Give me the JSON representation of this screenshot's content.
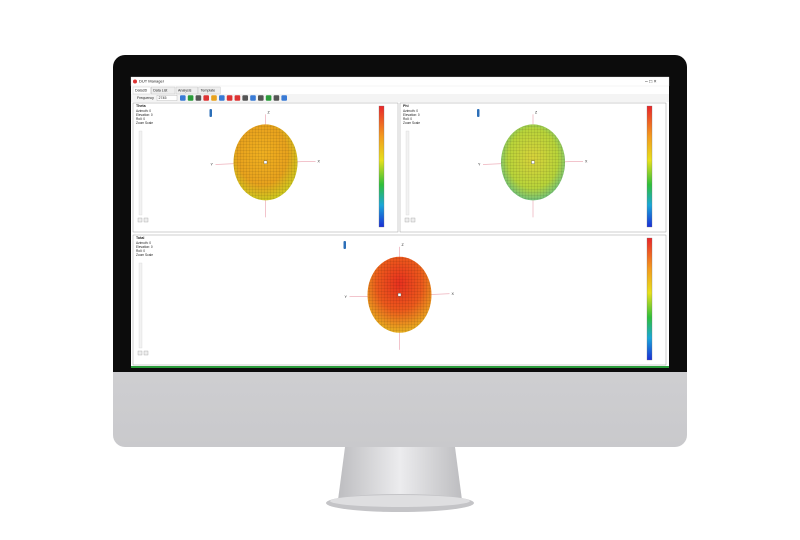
{
  "window": {
    "title": "DUT Manager"
  },
  "tabs": [
    "Data3D",
    "Data List",
    "Analysis",
    "Template"
  ],
  "toolbar": {
    "frequency_label": "Frequency",
    "frequency_value": "2745"
  },
  "panels": [
    {
      "title": "Theta",
      "azimuth": "Azimuth: 0",
      "elevation": "Elevation: 0",
      "roll": "Roll: 0",
      "zoom": "Zoom Scale",
      "axes": [
        "X",
        "Y",
        "Z"
      ]
    },
    {
      "title": "Phi",
      "azimuth": "Azimuth: 0",
      "elevation": "Elevation: 0",
      "roll": "Roll: 0",
      "zoom": "Zoom Scale",
      "axes": [
        "X",
        "Y",
        "Z"
      ]
    },
    {
      "title": "Total",
      "azimuth": "Azimuth: 0",
      "elevation": "Elevation: 0",
      "roll": "Roll: 0",
      "zoom": "Zoom Scale",
      "axes": [
        "X",
        "Y",
        "Z"
      ]
    }
  ]
}
